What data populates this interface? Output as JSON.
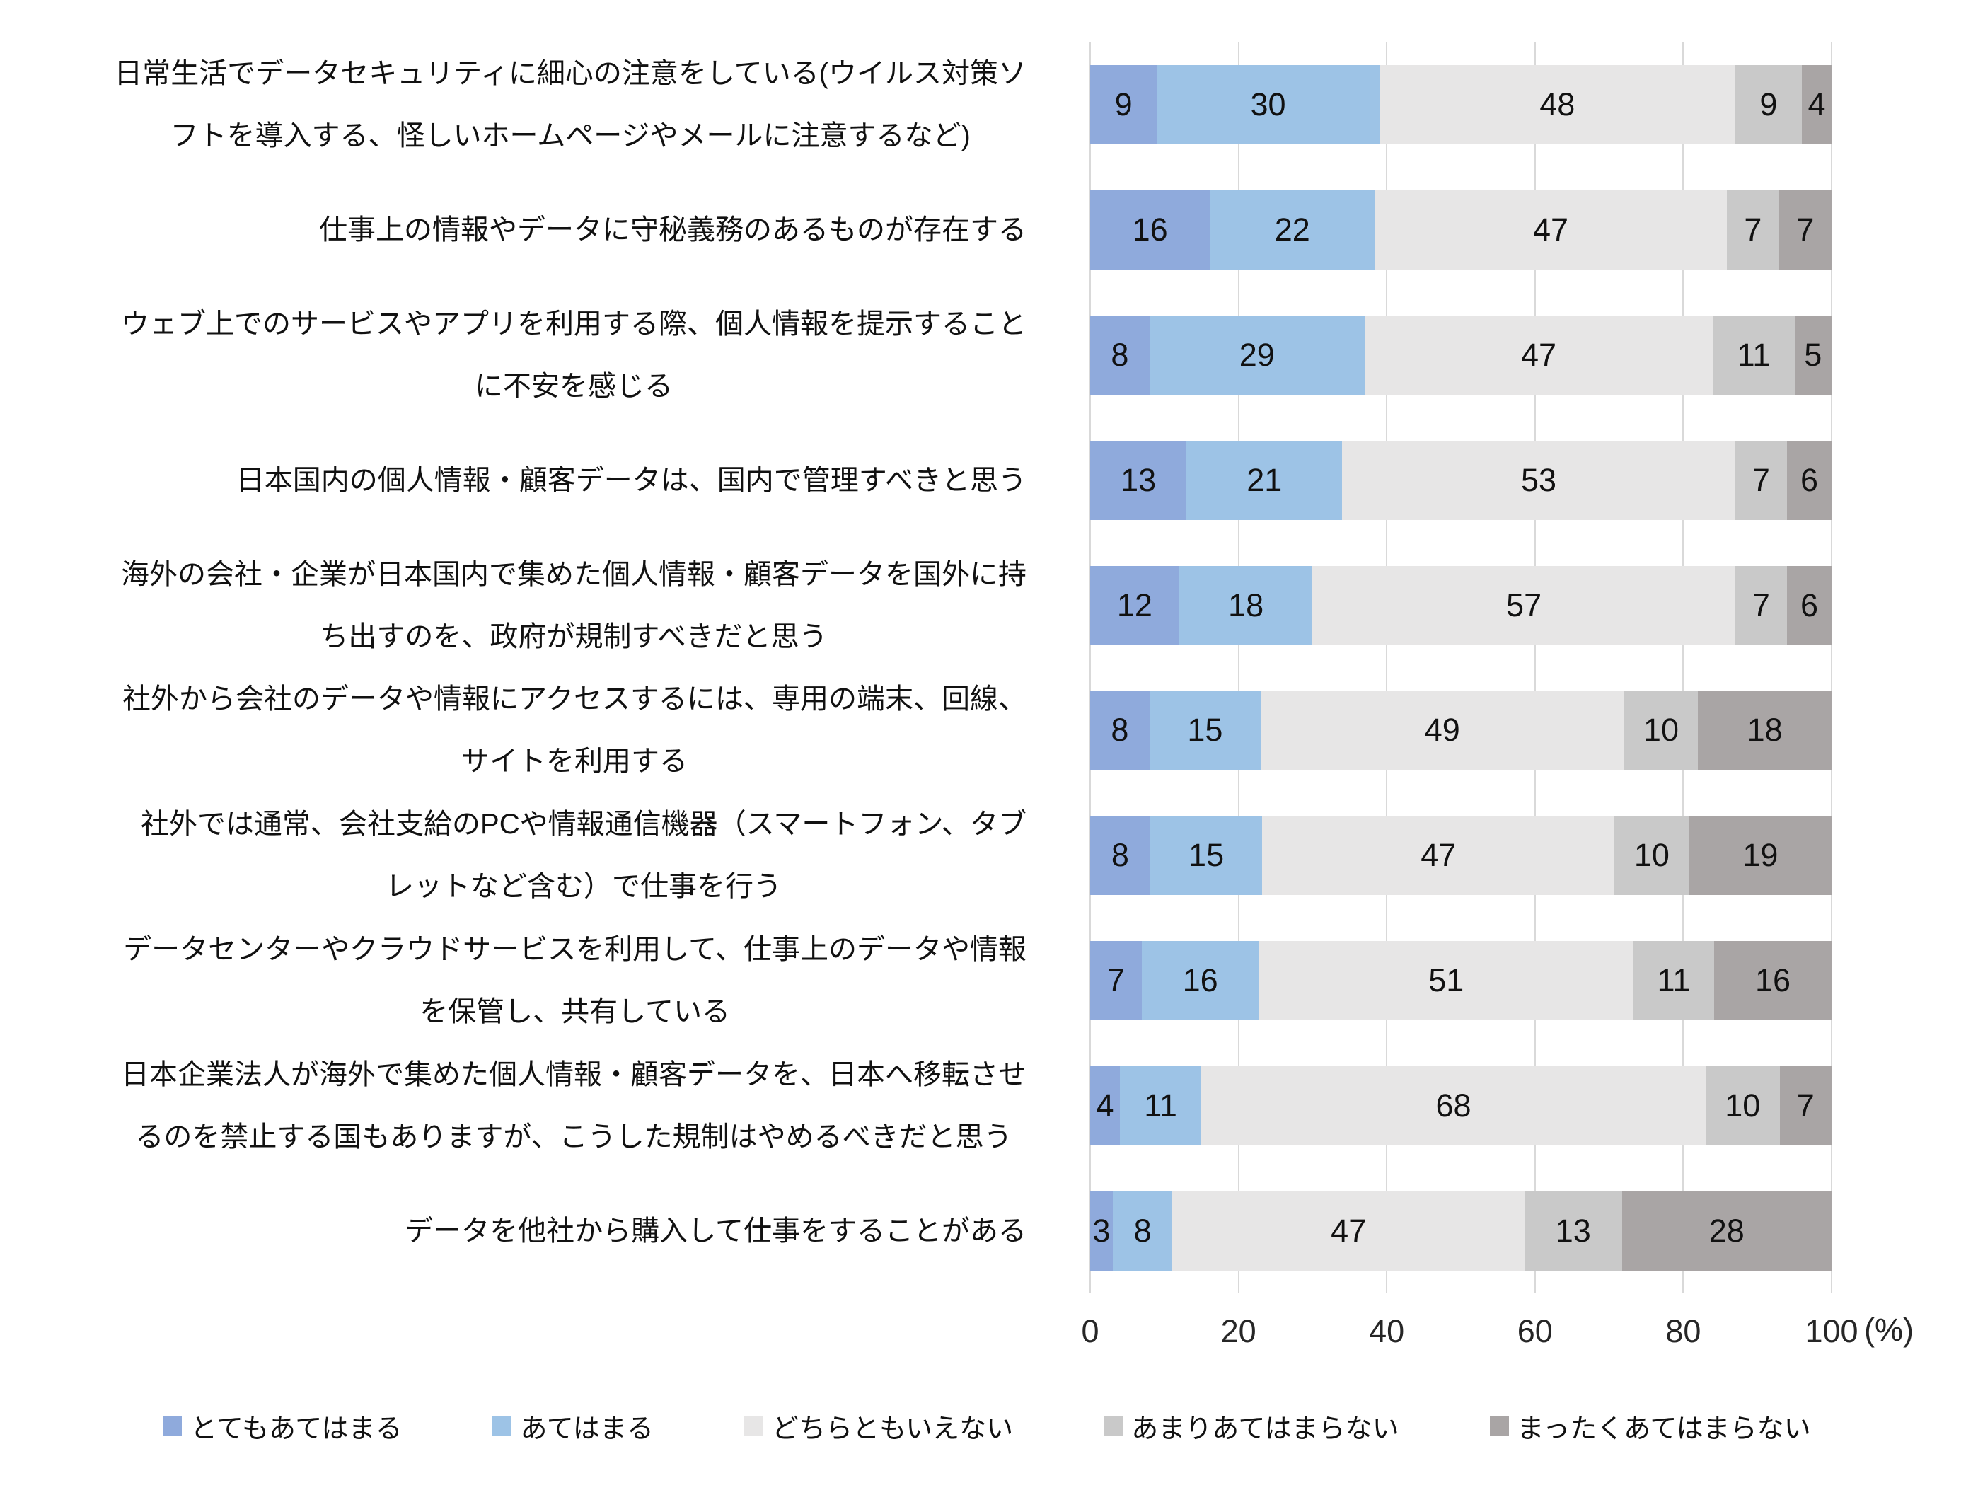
{
  "chart_data": {
    "type": "bar",
    "subtype": "horizontal-100pct-stacked",
    "title": "",
    "xlabel": "(%)",
    "ylabel": "",
    "x_axis": {
      "range": [
        0,
        100
      ],
      "ticks": [
        "0",
        "20",
        "40",
        "60",
        "80",
        "100"
      ],
      "unit_label": "(%)",
      "gridlines": true,
      "gridline_color": "#d9d9d9"
    },
    "legend_position": "bottom",
    "categories": [
      "日常生活でデータセキュリティに細心の注意をしている(ウイルス対策ソ\nフトを導入する、怪しいホームページやメールに注意するなど)",
      "仕事上の情報やデータに守秘義務のあるものが存在する",
      "ウェブ上でのサービスやアプリを利用する際、個人情報を提示すること\nに不安を感じる",
      "日本国内の個人情報・顧客データは、国内で管理すべきと思う",
      "海外の会社・企業が日本国内で集めた個人情報・顧客データを国外に持\nち出すのを、政府が規制すべきだと思う",
      "社外から会社のデータや情報にアクセスするには、専用の端末、回線、\nサイトを利用する",
      "社外では通常、会社支給のPCや情報通信機器（スマートフォン、タブ\nレットなど含む）で仕事を行う",
      "データセンターやクラウドサービスを利用して、仕事上のデータや情報\nを保管し、共有している",
      "日本企業法人が海外で集めた個人情報・顧客データを、日本へ移転させ\nるのを禁止する国もありますが、こうした規制はやめるべきだと思う",
      "データを他社から購入して仕事をすることがある"
    ],
    "series": [
      {
        "name": "とてもあてはまる",
        "color": "#8FAADC",
        "values": [
          9,
          16,
          8,
          13,
          12,
          8,
          8,
          7,
          4,
          3
        ]
      },
      {
        "name": "あてはまる",
        "color": "#9DC3E6",
        "values": [
          30,
          22,
          29,
          21,
          18,
          15,
          15,
          16,
          11,
          8
        ]
      },
      {
        "name": "どちらともいえない",
        "color": "#E7E6E6",
        "values": [
          48,
          47,
          47,
          53,
          57,
          49,
          47,
          51,
          68,
          47
        ]
      },
      {
        "name": "あまりあてはまらない",
        "color": "#C9C9C9",
        "values": [
          9,
          7,
          11,
          7,
          7,
          10,
          10,
          11,
          10,
          13
        ]
      },
      {
        "name": "まったくあてはまらない",
        "color": "#A9A5A5",
        "values": [
          4,
          7,
          5,
          6,
          6,
          18,
          19,
          16,
          7,
          28
        ]
      }
    ]
  }
}
